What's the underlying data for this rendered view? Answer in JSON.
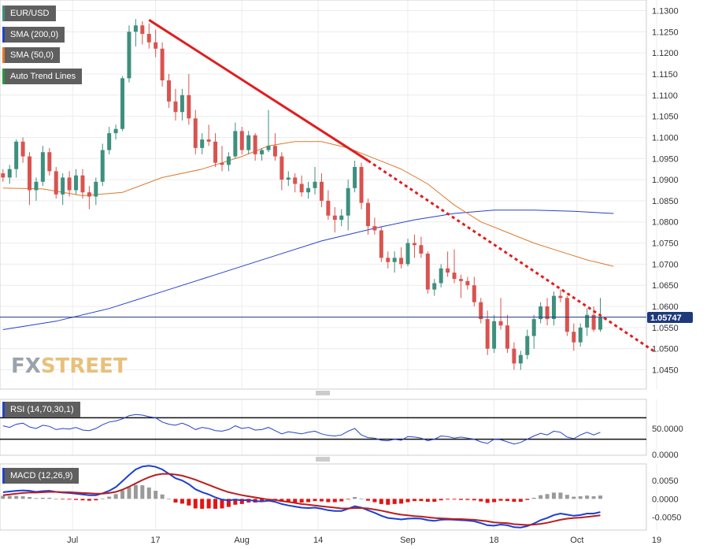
{
  "legend": {
    "pair": "EUR/USD",
    "sma200": "SMA (200,0)",
    "sma50": "SMA (50,0)",
    "trend": "Auto Trend Lines"
  },
  "colors": {
    "up": "#3e8f7e",
    "down": "#d9534f",
    "sma200": "#2342c9",
    "sma50": "#e0782c",
    "trend": "#e01e1e",
    "rsi": "#2342c9",
    "macd": "#1b3fd6",
    "signal": "#b81f1f",
    "hist_pos": "#9a9a9a",
    "hist_neg": "#e21414",
    "price_tag": "#1d3a7a"
  },
  "current_price": "1.05747",
  "watermark": {
    "a": "FX",
    "b": "STREET"
  },
  "rsi_label": "RSI (14,70,30,1)",
  "macd_label": "MACD (12,26,9)",
  "chart_data": [
    {
      "type": "candlestick",
      "title": "EUR/USD",
      "x_ticks": [
        "Jul",
        "17",
        "Aug",
        "14",
        "Sep",
        "18",
        "Oct",
        "19"
      ],
      "y_ticks": [
        "1.1300",
        "1.1250",
        "1.1200",
        "1.1150",
        "1.1100",
        "1.1050",
        "1.1000",
        "1.0950",
        "1.0900",
        "1.0850",
        "1.0800",
        "1.0750",
        "1.0700",
        "1.0650",
        "1.0600",
        "1.0550",
        "1.0500",
        "1.0450"
      ],
      "ylim": [
        1.042,
        1.1305
      ],
      "grid": true,
      "candles": [
        [
          1.0915,
          1.0925,
          1.0895,
          1.0905
        ],
        [
          1.0905,
          1.0935,
          1.089,
          1.0925
        ],
        [
          1.0925,
          1.0995,
          1.0905,
          1.099
        ],
        [
          1.099,
          1.1,
          1.094,
          1.0955
        ],
        [
          1.0955,
          1.0965,
          1.084,
          1.0875
        ],
        [
          1.0875,
          1.0905,
          1.085,
          1.0895
        ],
        [
          1.0895,
          1.098,
          1.0885,
          1.0965
        ],
        [
          1.0965,
          1.0975,
          1.091,
          1.092
        ],
        [
          1.092,
          1.093,
          1.0855,
          1.0865
        ],
        [
          1.0865,
          1.0915,
          1.084,
          1.0905
        ],
        [
          1.0905,
          1.092,
          1.086,
          1.0875
        ],
        [
          1.0875,
          1.0925,
          1.0865,
          1.091
        ],
        [
          1.091,
          1.0925,
          1.0855,
          1.087
        ],
        [
          1.087,
          1.0885,
          1.083,
          1.086
        ],
        [
          1.086,
          1.0905,
          1.084,
          1.0895
        ],
        [
          1.0895,
          1.0985,
          1.0885,
          1.097
        ],
        [
          1.097,
          1.1025,
          1.096,
          1.101
        ],
        [
          1.101,
          1.103,
          1.0995,
          1.102
        ],
        [
          1.102,
          1.1145,
          1.1015,
          1.114
        ],
        [
          1.114,
          1.1265,
          1.113,
          1.125
        ],
        [
          1.125,
          1.128,
          1.1215,
          1.1265
        ],
        [
          1.1265,
          1.1275,
          1.122,
          1.1245
        ],
        [
          1.1245,
          1.127,
          1.121,
          1.1225
        ],
        [
          1.1225,
          1.1255,
          1.119,
          1.121
        ],
        [
          1.121,
          1.1225,
          1.112,
          1.1135
        ],
        [
          1.1135,
          1.115,
          1.107,
          1.1085
        ],
        [
          1.1085,
          1.1115,
          1.104,
          1.106
        ],
        [
          1.106,
          1.1115,
          1.104,
          1.11
        ],
        [
          1.11,
          1.115,
          1.103,
          1.1045
        ],
        [
          1.1045,
          1.1065,
          1.096,
          1.0975
        ],
        [
          1.0975,
          1.101,
          1.096,
          1.0995
        ],
        [
          1.0995,
          1.103,
          1.098,
          1.099
        ],
        [
          1.099,
          1.101,
          1.093,
          1.094
        ],
        [
          1.094,
          1.098,
          1.092,
          1.0935
        ],
        [
          1.0935,
          1.0965,
          1.092,
          1.0955
        ],
        [
          1.0955,
          1.1035,
          1.095,
          1.1015
        ],
        [
          1.1015,
          1.1025,
          1.096,
          1.097
        ],
        [
          1.097,
          1.1015,
          1.096,
          1.1005
        ],
        [
          1.1005,
          1.101,
          1.0945,
          1.096
        ],
        [
          1.096,
          1.0975,
          1.0945,
          1.097
        ],
        [
          1.097,
          1.1065,
          1.0965,
          1.098
        ],
        [
          1.098,
          1.101,
          1.0945,
          1.0955
        ],
        [
          1.0955,
          1.0965,
          1.0875,
          1.09
        ],
        [
          1.09,
          1.092,
          1.0885,
          1.0905
        ],
        [
          1.0905,
          1.0915,
          1.087,
          1.089
        ],
        [
          1.089,
          1.091,
          1.086,
          1.087
        ],
        [
          1.087,
          1.0895,
          1.0855,
          1.088
        ],
        [
          1.088,
          1.093,
          1.0865,
          1.0895
        ],
        [
          1.0895,
          1.0915,
          1.0835,
          1.085
        ],
        [
          1.085,
          1.0875,
          1.0805,
          1.0815
        ],
        [
          1.0815,
          1.0835,
          1.0775,
          1.0805
        ],
        [
          1.0805,
          1.083,
          1.079,
          1.0815
        ],
        [
          1.0815,
          1.09,
          1.078,
          1.088
        ],
        [
          1.088,
          1.0945,
          1.087,
          1.093
        ],
        [
          1.093,
          1.094,
          1.083,
          1.0845
        ],
        [
          1.0845,
          1.0855,
          1.077,
          1.079
        ],
        [
          1.079,
          1.081,
          1.077,
          1.078
        ],
        [
          1.078,
          1.079,
          1.0705,
          1.0715
        ],
        [
          1.0715,
          1.073,
          1.069,
          1.0705
        ],
        [
          1.0705,
          1.073,
          1.068,
          1.0715
        ],
        [
          1.0715,
          1.074,
          1.069,
          1.07
        ],
        [
          1.07,
          1.076,
          1.0695,
          1.075
        ],
        [
          1.075,
          1.077,
          1.0715,
          1.0745
        ],
        [
          1.0745,
          1.0765,
          1.0715,
          1.0725
        ],
        [
          1.0725,
          1.073,
          1.063,
          1.064
        ],
        [
          1.064,
          1.0665,
          1.0625,
          1.0655
        ],
        [
          1.0655,
          1.07,
          1.0645,
          1.069
        ],
        [
          1.069,
          1.073,
          1.067,
          1.068
        ],
        [
          1.068,
          1.0735,
          1.0655,
          1.0665
        ],
        [
          1.0665,
          1.0675,
          1.062,
          1.066
        ],
        [
          1.066,
          1.067,
          1.064,
          1.065
        ],
        [
          1.065,
          1.067,
          1.06,
          1.061
        ],
        [
          1.061,
          1.062,
          1.056,
          1.057
        ],
        [
          1.057,
          1.059,
          1.0485,
          1.05
        ],
        [
          1.05,
          1.058,
          1.049,
          1.0565
        ],
        [
          1.0565,
          1.062,
          1.0545,
          1.0555
        ],
        [
          1.0555,
          1.058,
          1.049,
          1.05
        ],
        [
          1.05,
          1.0515,
          1.045,
          1.0465
        ],
        [
          1.0465,
          1.0495,
          1.045,
          1.0485
        ],
        [
          1.0485,
          1.0545,
          1.0475,
          1.053
        ],
        [
          1.053,
          1.058,
          1.05,
          1.057
        ],
        [
          1.057,
          1.061,
          1.056,
          1.06
        ],
        [
          1.06,
          1.062,
          1.0555,
          1.057
        ],
        [
          1.057,
          1.0635,
          1.0555,
          1.0625
        ],
        [
          1.0625,
          1.064,
          1.061,
          1.062
        ],
        [
          1.062,
          1.0625,
          1.053,
          1.054
        ],
        [
          1.054,
          1.056,
          1.0495,
          1.0515
        ],
        [
          1.0515,
          1.056,
          1.0505,
          1.055
        ],
        [
          1.055,
          1.0595,
          1.053,
          1.058
        ],
        [
          1.058,
          1.06,
          1.054,
          1.0545
        ],
        [
          1.0545,
          1.062,
          1.054,
          1.0575
        ]
      ],
      "sma50": [
        [
          0,
          1.088
        ],
        [
          6,
          1.0878
        ],
        [
          12,
          1.0862
        ],
        [
          18,
          1.087
        ],
        [
          24,
          1.0905
        ],
        [
          30,
          1.0925
        ],
        [
          36,
          1.0955
        ],
        [
          40,
          1.098
        ],
        [
          44,
          1.099
        ],
        [
          48,
          1.099
        ],
        [
          52,
          1.0975
        ],
        [
          56,
          1.095
        ],
        [
          60,
          1.0925
        ],
        [
          64,
          1.089
        ],
        [
          68,
          1.084
        ],
        [
          72,
          1.08
        ],
        [
          76,
          1.0775
        ],
        [
          80,
          1.075
        ],
        [
          84,
          1.073
        ],
        [
          88,
          1.071
        ],
        [
          92,
          1.0695
        ]
      ],
      "sma200": [
        [
          0,
          1.0545
        ],
        [
          8,
          1.0565
        ],
        [
          16,
          1.0595
        ],
        [
          24,
          1.0635
        ],
        [
          32,
          1.0675
        ],
        [
          40,
          1.0715
        ],
        [
          48,
          1.0755
        ],
        [
          56,
          1.0785
        ],
        [
          62,
          1.0805
        ],
        [
          68,
          1.082
        ],
        [
          74,
          1.0828
        ],
        [
          80,
          1.0828
        ],
        [
          86,
          1.0825
        ],
        [
          92,
          1.082
        ]
      ],
      "trendline_solid": [
        [
          22,
          1.1278
        ],
        [
          55,
          1.0945
        ]
      ],
      "trendline_dotted": [
        [
          55,
          1.0945
        ],
        [
          98,
          1.0495
        ]
      ]
    },
    {
      "type": "line",
      "title": "RSI (14,70,30,1)",
      "y_ticks": [
        "50.0000",
        "0.0000"
      ],
      "ylim": [
        0,
        100
      ],
      "levels": [
        70,
        30
      ],
      "values": [
        55,
        52,
        58,
        60,
        53,
        50,
        56,
        54,
        48,
        50,
        49,
        52,
        47,
        46,
        50,
        57,
        62,
        64,
        68,
        74,
        76,
        75,
        72,
        70,
        62,
        58,
        56,
        60,
        55,
        48,
        52,
        50,
        46,
        45,
        48,
        55,
        50,
        52,
        47,
        48,
        52,
        46,
        40,
        44,
        42,
        40,
        43,
        45,
        40,
        37,
        36,
        38,
        45,
        50,
        38,
        33,
        32,
        28,
        27,
        30,
        28,
        35,
        34,
        32,
        27,
        30,
        36,
        35,
        32,
        34,
        32,
        30,
        25,
        22,
        30,
        29,
        25,
        21,
        24,
        30,
        36,
        41,
        38,
        45,
        43,
        34,
        31,
        38,
        43,
        38,
        43
      ]
    },
    {
      "type": "line",
      "title": "MACD (12,26,9)",
      "y_ticks": [
        "0.0050",
        "0.0000",
        "-0.0050"
      ],
      "ylim": [
        -0.0085,
        0.0095
      ],
      "macd": [
        0.0018,
        0.002,
        0.0022,
        0.0023,
        0.0022,
        0.0019,
        0.0021,
        0.0022,
        0.0019,
        0.0017,
        0.0016,
        0.0014,
        0.0012,
        0.001,
        0.001,
        0.0015,
        0.0022,
        0.0032,
        0.0048,
        0.0065,
        0.008,
        0.0088,
        0.009,
        0.0087,
        0.008,
        0.0068,
        0.0056,
        0.005,
        0.004,
        0.0026,
        0.0018,
        0.0012,
        0.0004,
        -0.0002,
        -0.0004,
        -0.0002,
        -0.0004,
        -0.0003,
        -0.0006,
        -0.0007,
        -0.0005,
        -0.0008,
        -0.0014,
        -0.0018,
        -0.0021,
        -0.0024,
        -0.0025,
        -0.0024,
        -0.0027,
        -0.0031,
        -0.0033,
        -0.0033,
        -0.0027,
        -0.002,
        -0.0024,
        -0.0031,
        -0.0038,
        -0.0046,
        -0.0052,
        -0.0054,
        -0.0056,
        -0.0054,
        -0.0053,
        -0.0054,
        -0.0058,
        -0.006,
        -0.0057,
        -0.0056,
        -0.0057,
        -0.0058,
        -0.0059,
        -0.0061,
        -0.0066,
        -0.0072,
        -0.0073,
        -0.007,
        -0.0072,
        -0.0077,
        -0.0078,
        -0.0074,
        -0.0067,
        -0.0058,
        -0.0052,
        -0.0044,
        -0.004,
        -0.0043,
        -0.0046,
        -0.0044,
        -0.004,
        -0.004,
        -0.0036
      ],
      "signal": [
        0.001,
        0.0012,
        0.0014,
        0.0016,
        0.0017,
        0.0017,
        0.0018,
        0.0019,
        0.0019,
        0.0018,
        0.0018,
        0.0017,
        0.0016,
        0.0015,
        0.0014,
        0.0014,
        0.0016,
        0.0019,
        0.0025,
        0.0033,
        0.0042,
        0.0051,
        0.0059,
        0.0065,
        0.0068,
        0.0068,
        0.0066,
        0.0063,
        0.0058,
        0.0052,
        0.0045,
        0.0038,
        0.0031,
        0.0024,
        0.0018,
        0.0014,
        0.001,
        0.0007,
        0.0004,
        0.0001,
        -0.0002,
        -0.0003,
        -0.0006,
        -0.0008,
        -0.0011,
        -0.0014,
        -0.0016,
        -0.0018,
        -0.002,
        -0.0022,
        -0.0024,
        -0.0026,
        -0.0026,
        -0.0025,
        -0.0025,
        -0.0026,
        -0.0029,
        -0.0032,
        -0.0036,
        -0.004,
        -0.0043,
        -0.0045,
        -0.0047,
        -0.0048,
        -0.005,
        -0.0052,
        -0.0053,
        -0.0054,
        -0.0055,
        -0.0055,
        -0.0056,
        -0.0057,
        -0.0059,
        -0.0061,
        -0.0064,
        -0.0065,
        -0.0066,
        -0.0069,
        -0.007,
        -0.0071,
        -0.007,
        -0.0068,
        -0.0065,
        -0.0061,
        -0.0057,
        -0.0054,
        -0.0052,
        -0.0051,
        -0.0049,
        -0.0047,
        -0.0045
      ]
    }
  ]
}
